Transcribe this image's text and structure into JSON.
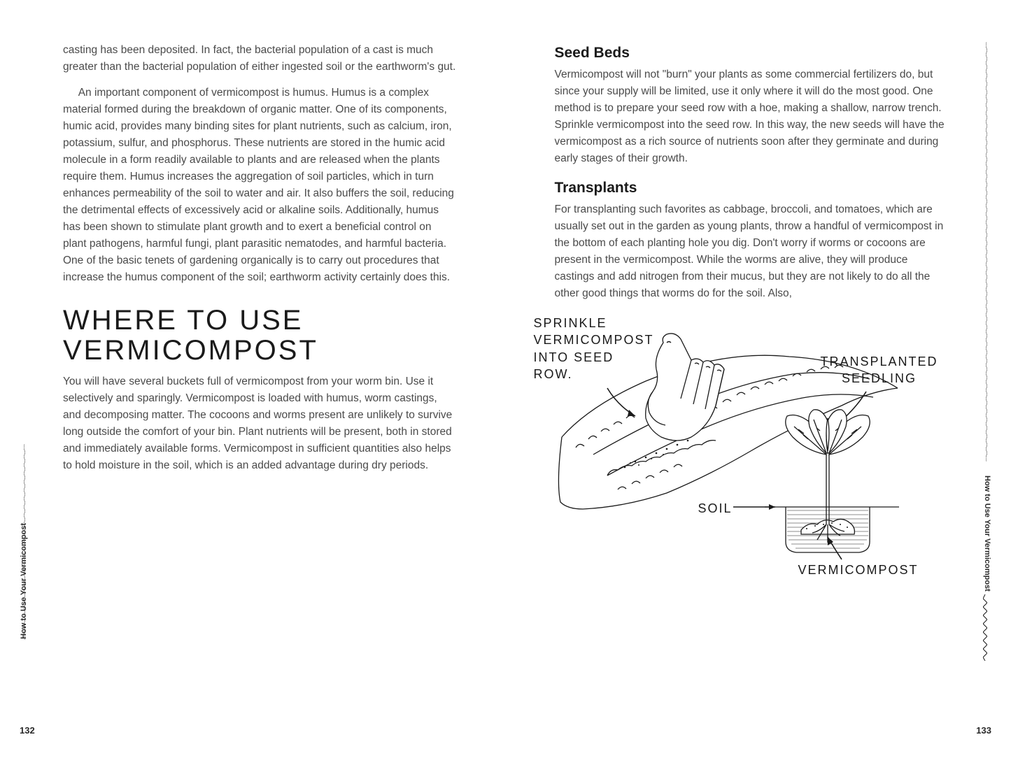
{
  "left": {
    "margin_label": "How to Use Your Vermicompost",
    "page_number": "132",
    "para1": "casting has been deposited. In fact, the bacterial population of a cast is much greater than the bacterial population of either ingested soil or the earthworm's gut.",
    "para2": "An important component of vermicompost is humus. Humus is a complex material formed during the breakdown of organic matter. One of its components, humic acid, provides many binding sites for plant nutrients, such as calcium, iron, potassium, sulfur, and phosphorus. These nutrients are stored in the humic acid molecule in a form readily available to plants and are released when the plants require them. Humus increases the aggregation of soil particles, which in turn enhances permeability of the soil to water and air. It also buffers the soil, reducing the detrimental effects of excessively acid or alkaline soils. Additionally, humus has been shown to stimulate plant growth and to exert a beneficial control on plant pathogens, harmful fungi, plant parasitic nematodes, and harmful bacteria. One of the basic tenets of gardening organically is to carry out procedures that increase the humus component of the soil; earthworm activity certainly does this.",
    "heading": "WHERE TO USE VERMICOMPOST",
    "para3": "You will have several buckets full of vermicompost from your worm bin. Use it selectively and sparingly. Vermicompost is loaded with humus, worm castings, and decomposing matter. The cocoons and worms present are unlikely to survive long outside the comfort of your bin. Plant nutrients will be present, both in stored and immediately available forms. Vermicompost in sufficient quantities also helps to hold moisture in the soil, which is an added advantage during dry periods."
  },
  "right": {
    "margin_label": "How to Use Your Vermicompost",
    "page_number": "133",
    "h_seed": "Seed Beds",
    "p_seed": "Vermicompost will not \"burn\" your plants as some commercial fertilizers do, but since your supply will be limited, use it only where it will do the most good. One method is to prepare your seed row with a hoe, making a shallow, narrow trench. Sprinkle vermicompost into the seed row. In this way, the new seeds will have the vermicompost as a rich source of nutrients soon after they germinate and during early stages of their growth.",
    "h_trans": "Transplants",
    "p_trans": "For transplanting such favorites as cabbage, broccoli, and tomatoes, which are usually set out in the garden as young plants, throw a handful of vermicompost in the bottom of each planting hole you dig. Don't worry if worms or cocoons are present in the vermicompost. While the worms are alive, they will produce castings and add nitrogen from their mucus, but they are not likely to do all the other good things that worms do for the soil. Also,",
    "illus": {
      "label_sprinkle": "SPRINKLE\nVERMICOMPOST\nINTO SEED\nROW.",
      "label_seedling": "TRANSPLANTED\nSEEDLING",
      "label_soil": "SOIL",
      "label_vermi": "VERMICOMPOST"
    }
  },
  "style": {
    "text_color": "#4a4a4a",
    "heading_color": "#1a1a1a",
    "body_fontsize": 15.5,
    "heading_fontsize": 40,
    "subheading_fontsize": 21,
    "illus_label_fontsize": 18,
    "background": "#ffffff"
  }
}
